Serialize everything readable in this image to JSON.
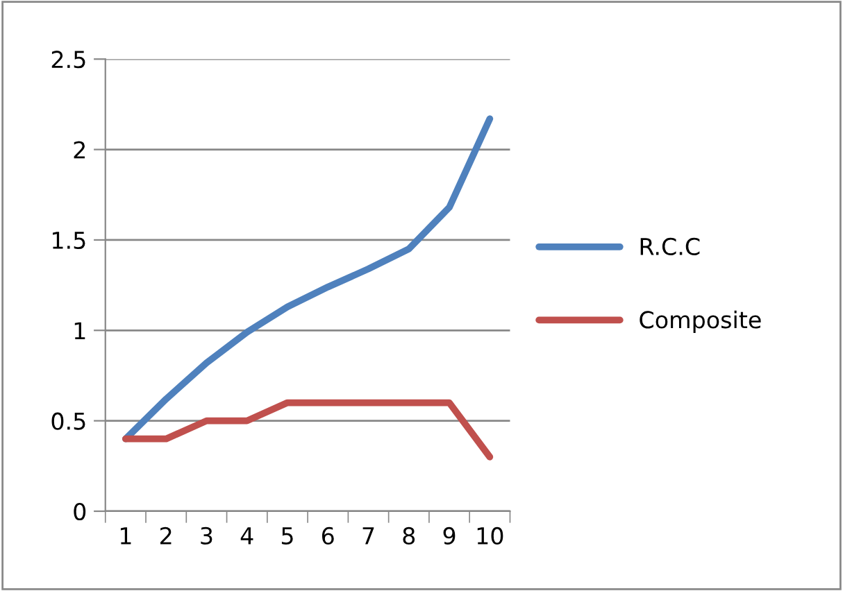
{
  "chart_data": {
    "type": "line",
    "categories": [
      "1",
      "2",
      "3",
      "4",
      "5",
      "6",
      "7",
      "8",
      "9",
      "10"
    ],
    "series": [
      {
        "name": "R.C.C",
        "color": "#4f81bd",
        "values": [
          0.4,
          0.62,
          0.82,
          0.99,
          1.13,
          1.24,
          1.34,
          1.45,
          1.68,
          2.17
        ]
      },
      {
        "name": "Composite",
        "color": "#c0504d",
        "values": [
          0.4,
          0.4,
          0.5,
          0.5,
          0.6,
          0.6,
          0.6,
          0.6,
          0.6,
          0.3
        ]
      }
    ],
    "ylim": [
      0,
      2.5
    ],
    "yticks": [
      0,
      0.5,
      1,
      1.5,
      2,
      {
        "value": 2.5,
        "label": "2.5"
      }
    ],
    "grid": "y",
    "legend": "right",
    "marker": "none",
    "line_style": "solid"
  }
}
